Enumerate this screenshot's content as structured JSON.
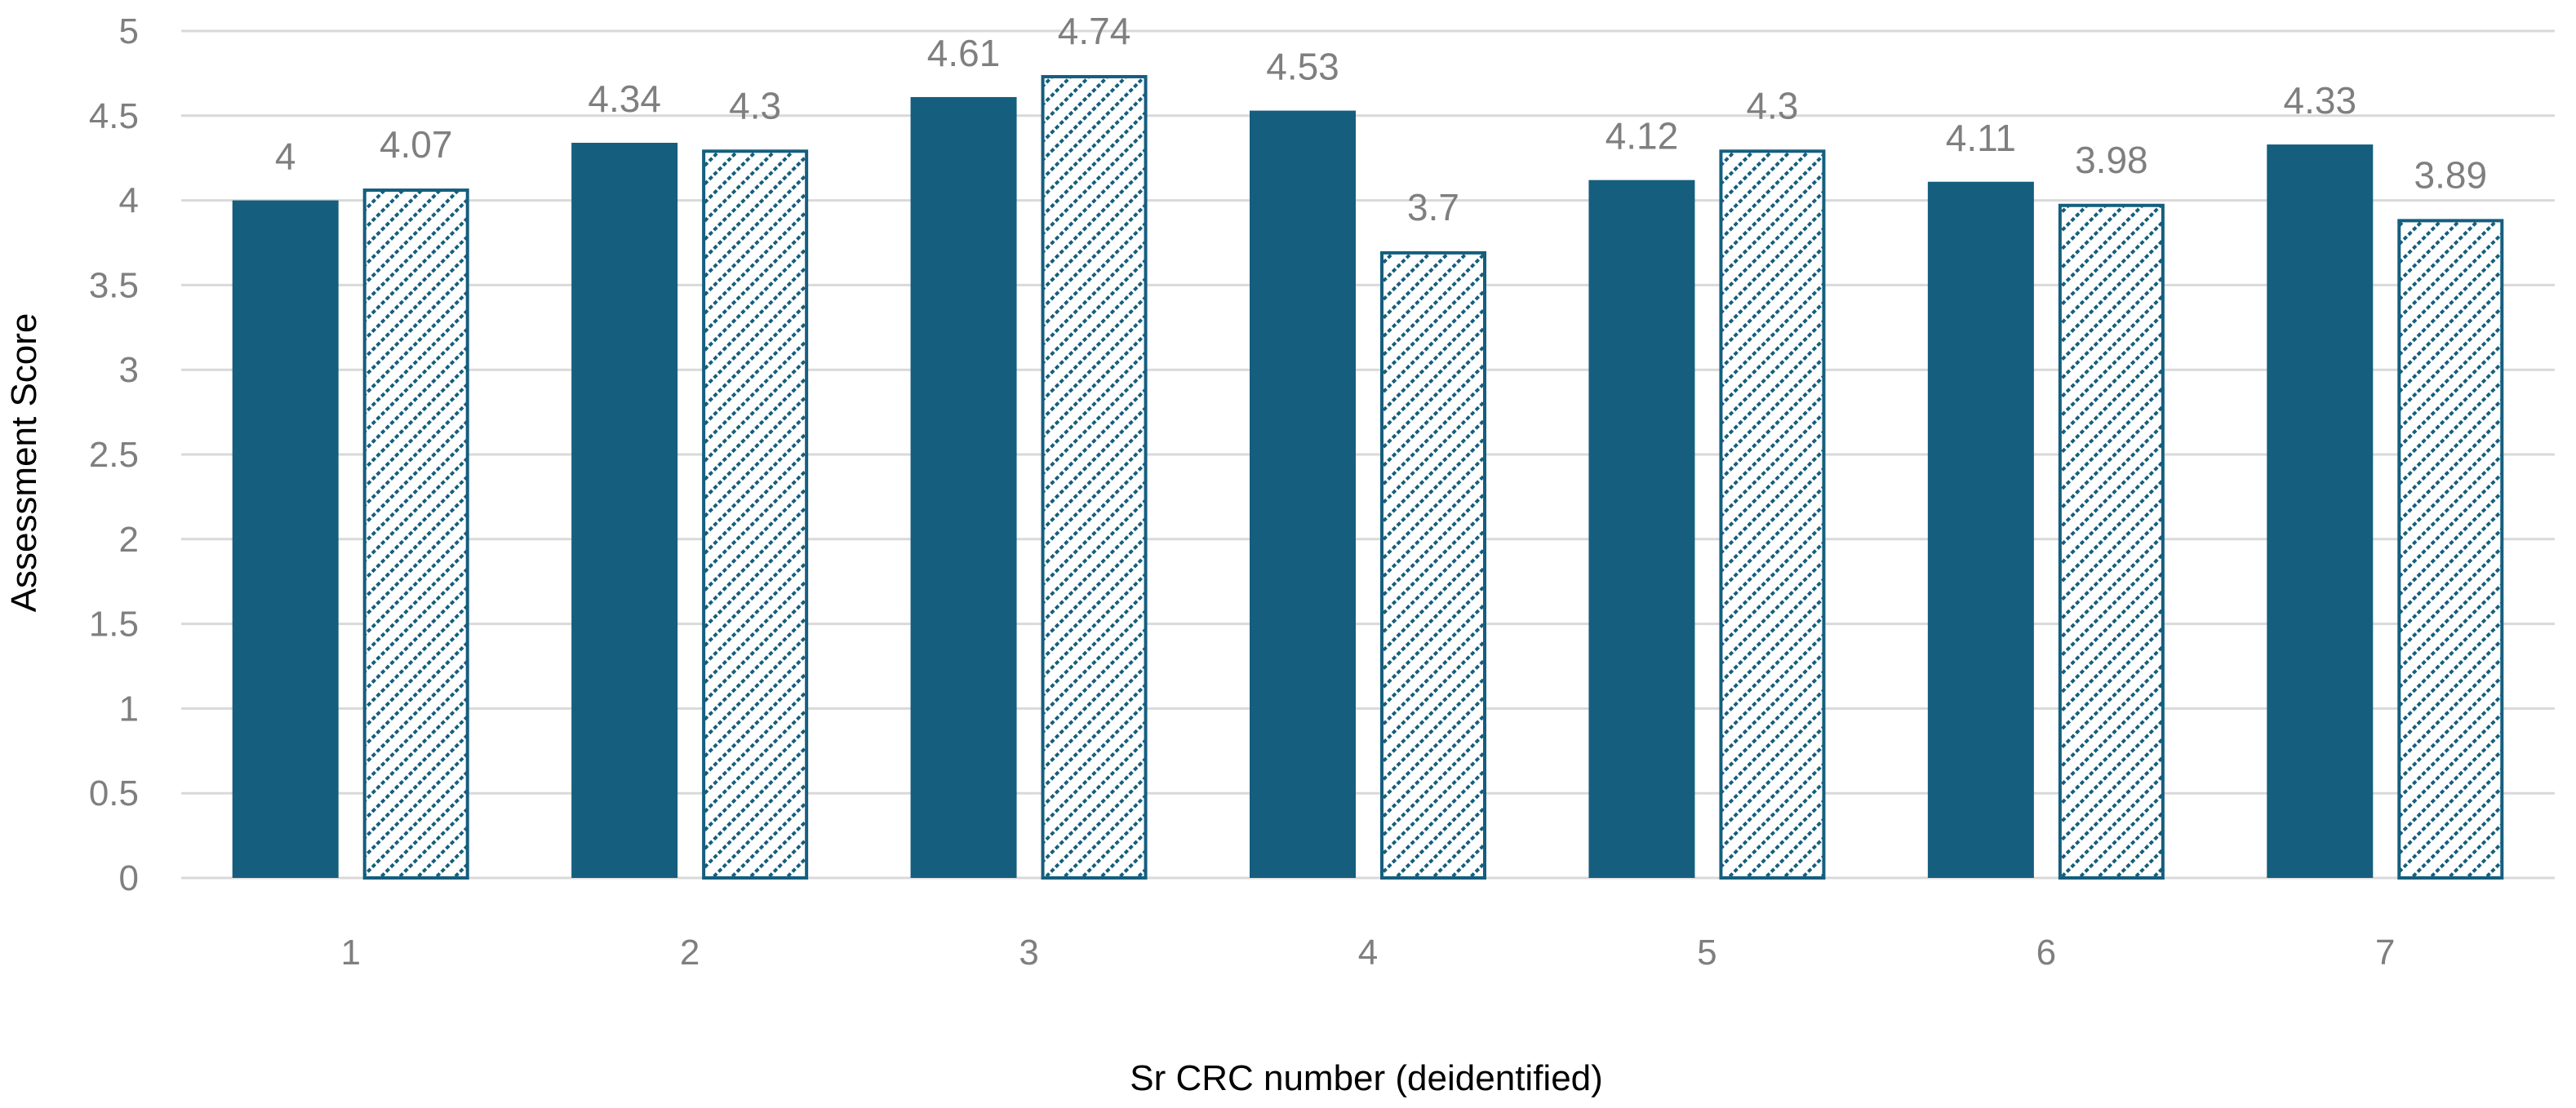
{
  "chart_data": {
    "type": "bar",
    "categories": [
      "1",
      "2",
      "3",
      "4",
      "5",
      "6",
      "7"
    ],
    "series": [
      {
        "values": [
          4,
          4.34,
          4.61,
          4.53,
          4.12,
          4.11,
          4.33
        ],
        "style": "solid"
      },
      {
        "values": [
          4.07,
          4.3,
          4.74,
          3.7,
          4.3,
          3.98,
          3.89
        ],
        "style": "hatched"
      }
    ],
    "data_labels": [
      [
        "4",
        "4.34",
        "4.61",
        "4.53",
        "4.12",
        "4.11",
        "4.33"
      ],
      [
        "4.07",
        "4.3",
        "4.74",
        "3.7",
        "4.3",
        "3.98",
        "3.89"
      ]
    ],
    "xlabel": "Sr CRC number  (deidentified)",
    "ylabel": "Assessment Score",
    "ylim": [
      0,
      5
    ],
    "yticks": [
      "0",
      "0.5",
      "1",
      "1.5",
      "2",
      "2.5",
      "3",
      "3.5",
      "4",
      "4.5",
      "5"
    ],
    "grid": true,
    "legend": "none",
    "colors": {
      "bar": "#155e7e",
      "hatch_bg": "#ffffff",
      "grid": "#d9d9d9",
      "tick_text": "#7f7f7f"
    }
  }
}
